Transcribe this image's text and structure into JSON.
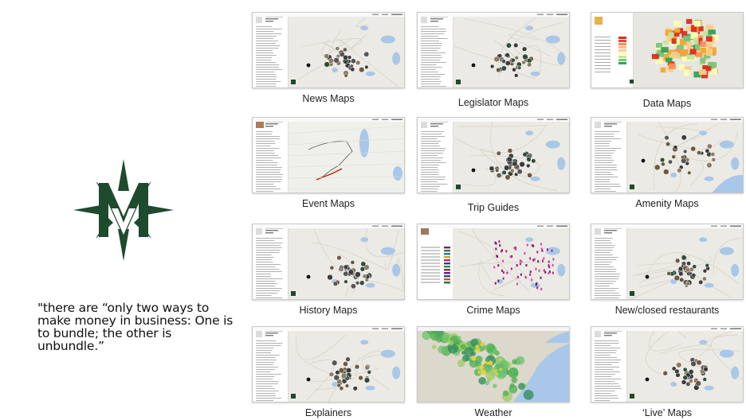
{
  "quote": "\"there are “only two ways to make money in business: One is to bundle; the other is unbundle.”",
  "logo": {
    "icon": "compass-m-logo",
    "color": "#1e4a2e"
  },
  "tiles": [
    {
      "label": "News Maps",
      "kind": "pins"
    },
    {
      "label": "Legislator Maps",
      "kind": "pins"
    },
    {
      "label": "Data Maps",
      "kind": "choropleth"
    },
    {
      "label": "Event Maps",
      "kind": "route"
    },
    {
      "label": "Trip Guides",
      "kind": "pins"
    },
    {
      "label": "Amenity Maps",
      "kind": "pins-wide"
    },
    {
      "label": "History Maps",
      "kind": "pins"
    },
    {
      "label": "Crime Maps",
      "kind": "crime"
    },
    {
      "label": "New/closed restaurants",
      "kind": "pins"
    },
    {
      "label": "Explainers",
      "kind": "pins"
    },
    {
      "label": "Weather",
      "kind": "radar"
    },
    {
      "label": "‘Live’ Maps",
      "kind": "pins"
    }
  ]
}
